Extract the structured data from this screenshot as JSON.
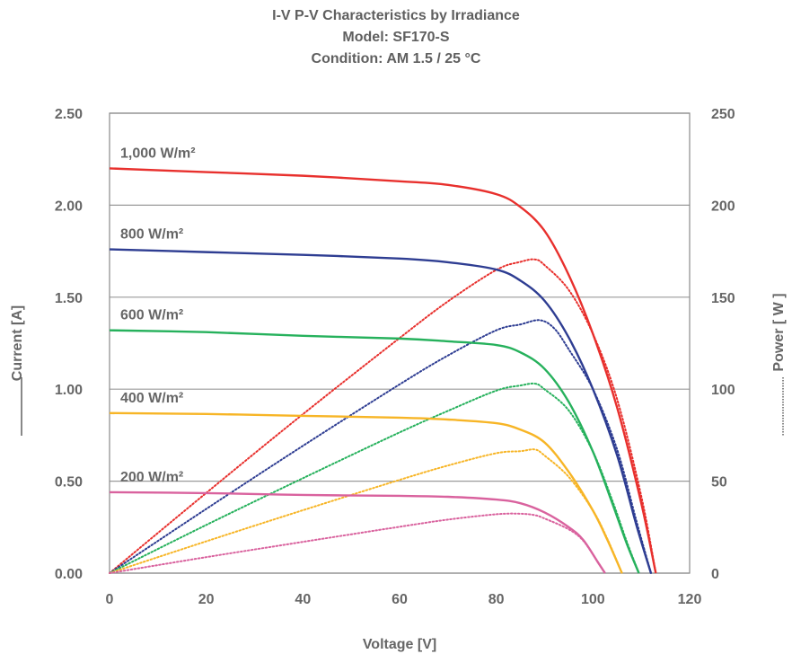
{
  "chart_data": {
    "type": "line",
    "title_lines": [
      "I-V P-V Characteristics by Irradiance",
      "Model:  SF170-S",
      "Condition:  AM 1.5 / 25 °C"
    ],
    "xlabel": "Voltage [V]",
    "ylabel_left": "Current [A]",
    "ylabel_right": "Power [ W ]",
    "xlim": [
      0,
      120
    ],
    "ylim_left": [
      0,
      2.5
    ],
    "ylim_right": [
      0,
      250
    ],
    "x_ticks": [
      "0",
      "20",
      "40",
      "60",
      "80",
      "100",
      "120"
    ],
    "y_left_ticks": [
      "0.00",
      "0.50",
      "1.00",
      "1.50",
      "2.00",
      "2.50"
    ],
    "y_right_ticks": [
      "0",
      "50",
      "100",
      "150",
      "200",
      "250"
    ],
    "grid": "horizontal",
    "legend": [
      {
        "label": "1,000 W/m²",
        "color": "#e8302d"
      },
      {
        "label": "800 W/m²",
        "color": "#2e3d92"
      },
      {
        "label": "600 W/m²",
        "color": "#26b15c"
      },
      {
        "label": "400 W/m²",
        "color": "#f7b526"
      },
      {
        "label": "200 W/m²",
        "color": "#d9629e"
      }
    ],
    "iv_series": [
      {
        "irradiance": "1,000 W/m²",
        "color": "#e8302d",
        "points": [
          [
            0,
            2.2
          ],
          [
            20,
            2.18
          ],
          [
            40,
            2.16
          ],
          [
            60,
            2.13
          ],
          [
            70,
            2.11
          ],
          [
            80,
            2.06
          ],
          [
            85,
            1.99
          ],
          [
            90,
            1.86
          ],
          [
            95,
            1.62
          ],
          [
            100,
            1.3
          ],
          [
            105,
            0.9
          ],
          [
            110,
            0.38
          ],
          [
            113,
            0.0
          ]
        ]
      },
      {
        "irradiance": "800 W/m²",
        "color": "#2e3d92",
        "points": [
          [
            0,
            1.76
          ],
          [
            20,
            1.745
          ],
          [
            40,
            1.73
          ],
          [
            60,
            1.71
          ],
          [
            70,
            1.69
          ],
          [
            80,
            1.65
          ],
          [
            85,
            1.59
          ],
          [
            90,
            1.48
          ],
          [
            95,
            1.28
          ],
          [
            100,
            1.0
          ],
          [
            105,
            0.64
          ],
          [
            109,
            0.26
          ],
          [
            112,
            0.0
          ]
        ]
      },
      {
        "irradiance": "600 W/m²",
        "color": "#26b15c",
        "points": [
          [
            0,
            1.32
          ],
          [
            20,
            1.31
          ],
          [
            40,
            1.29
          ],
          [
            60,
            1.275
          ],
          [
            70,
            1.26
          ],
          [
            80,
            1.24
          ],
          [
            85,
            1.2
          ],
          [
            90,
            1.11
          ],
          [
            95,
            0.93
          ],
          [
            100,
            0.66
          ],
          [
            104,
            0.38
          ],
          [
            107,
            0.16
          ],
          [
            109.5,
            0.0
          ]
        ]
      },
      {
        "irradiance": "400 W/m²",
        "color": "#f7b526",
        "points": [
          [
            0,
            0.87
          ],
          [
            20,
            0.865
          ],
          [
            40,
            0.855
          ],
          [
            60,
            0.845
          ],
          [
            70,
            0.835
          ],
          [
            80,
            0.815
          ],
          [
            85,
            0.78
          ],
          [
            90,
            0.71
          ],
          [
            95,
            0.55
          ],
          [
            100,
            0.34
          ],
          [
            103,
            0.18
          ],
          [
            106,
            0.0
          ]
        ]
      },
      {
        "irradiance": "200 W/m²",
        "color": "#d9629e",
        "points": [
          [
            0,
            0.44
          ],
          [
            20,
            0.435
          ],
          [
            40,
            0.425
          ],
          [
            60,
            0.42
          ],
          [
            70,
            0.415
          ],
          [
            80,
            0.4
          ],
          [
            85,
            0.38
          ],
          [
            90,
            0.33
          ],
          [
            95,
            0.25
          ],
          [
            98,
            0.18
          ],
          [
            101,
            0.06
          ],
          [
            102.5,
            0.0
          ]
        ]
      }
    ],
    "pv_series": [
      {
        "irradiance": "1,000 W/m²",
        "color": "#e8302d",
        "points": [
          [
            0,
            0
          ],
          [
            20,
            43.6
          ],
          [
            40,
            86.4
          ],
          [
            60,
            127.8
          ],
          [
            70,
            147.7
          ],
          [
            80,
            164.8
          ],
          [
            85,
            169.2
          ],
          [
            88,
            170.5
          ],
          [
            90,
            167.4
          ],
          [
            95,
            153.9
          ],
          [
            100,
            130.0
          ],
          [
            105,
            94.5
          ],
          [
            110,
            41.8
          ],
          [
            113,
            0
          ]
        ]
      },
      {
        "irradiance": "800 W/m²",
        "color": "#2e3d92",
        "points": [
          [
            0,
            0
          ],
          [
            20,
            34.9
          ],
          [
            40,
            69.2
          ],
          [
            60,
            102.6
          ],
          [
            70,
            118.3
          ],
          [
            80,
            132.0
          ],
          [
            85,
            135.2
          ],
          [
            89,
            137.5
          ],
          [
            92,
            133.0
          ],
          [
            95,
            121.6
          ],
          [
            100,
            100.0
          ],
          [
            105,
            67.2
          ],
          [
            109,
            28.3
          ],
          [
            112,
            0
          ]
        ]
      },
      {
        "irradiance": "600 W/m²",
        "color": "#26b15c",
        "points": [
          [
            0,
            0
          ],
          [
            20,
            26.2
          ],
          [
            40,
            51.6
          ],
          [
            60,
            76.5
          ],
          [
            70,
            88.2
          ],
          [
            80,
            99.2
          ],
          [
            85,
            102.0
          ],
          [
            88,
            103.0
          ],
          [
            90,
            99.9
          ],
          [
            95,
            88.4
          ],
          [
            100,
            66.0
          ],
          [
            104,
            39.5
          ],
          [
            107,
            17.1
          ],
          [
            109.5,
            0
          ]
        ]
      },
      {
        "irradiance": "400 W/m²",
        "color": "#f7b526",
        "points": [
          [
            0,
            0
          ],
          [
            20,
            17.3
          ],
          [
            40,
            34.2
          ],
          [
            60,
            50.7
          ],
          [
            70,
            58.5
          ],
          [
            80,
            65.2
          ],
          [
            85,
            66.3
          ],
          [
            88,
            67.2
          ],
          [
            90,
            63.9
          ],
          [
            95,
            52.3
          ],
          [
            100,
            34.0
          ],
          [
            103,
            18.5
          ],
          [
            106,
            0
          ]
        ]
      },
      {
        "irradiance": "200 W/m²",
        "color": "#d9629e",
        "points": [
          [
            0,
            0
          ],
          [
            20,
            8.7
          ],
          [
            40,
            17.0
          ],
          [
            60,
            25.2
          ],
          [
            70,
            29.1
          ],
          [
            80,
            32.0
          ],
          [
            85,
            32.3
          ],
          [
            88,
            31.5
          ],
          [
            90,
            29.7
          ],
          [
            95,
            23.8
          ],
          [
            98,
            17.6
          ],
          [
            101,
            6.1
          ],
          [
            102.5,
            0
          ]
        ]
      }
    ]
  }
}
